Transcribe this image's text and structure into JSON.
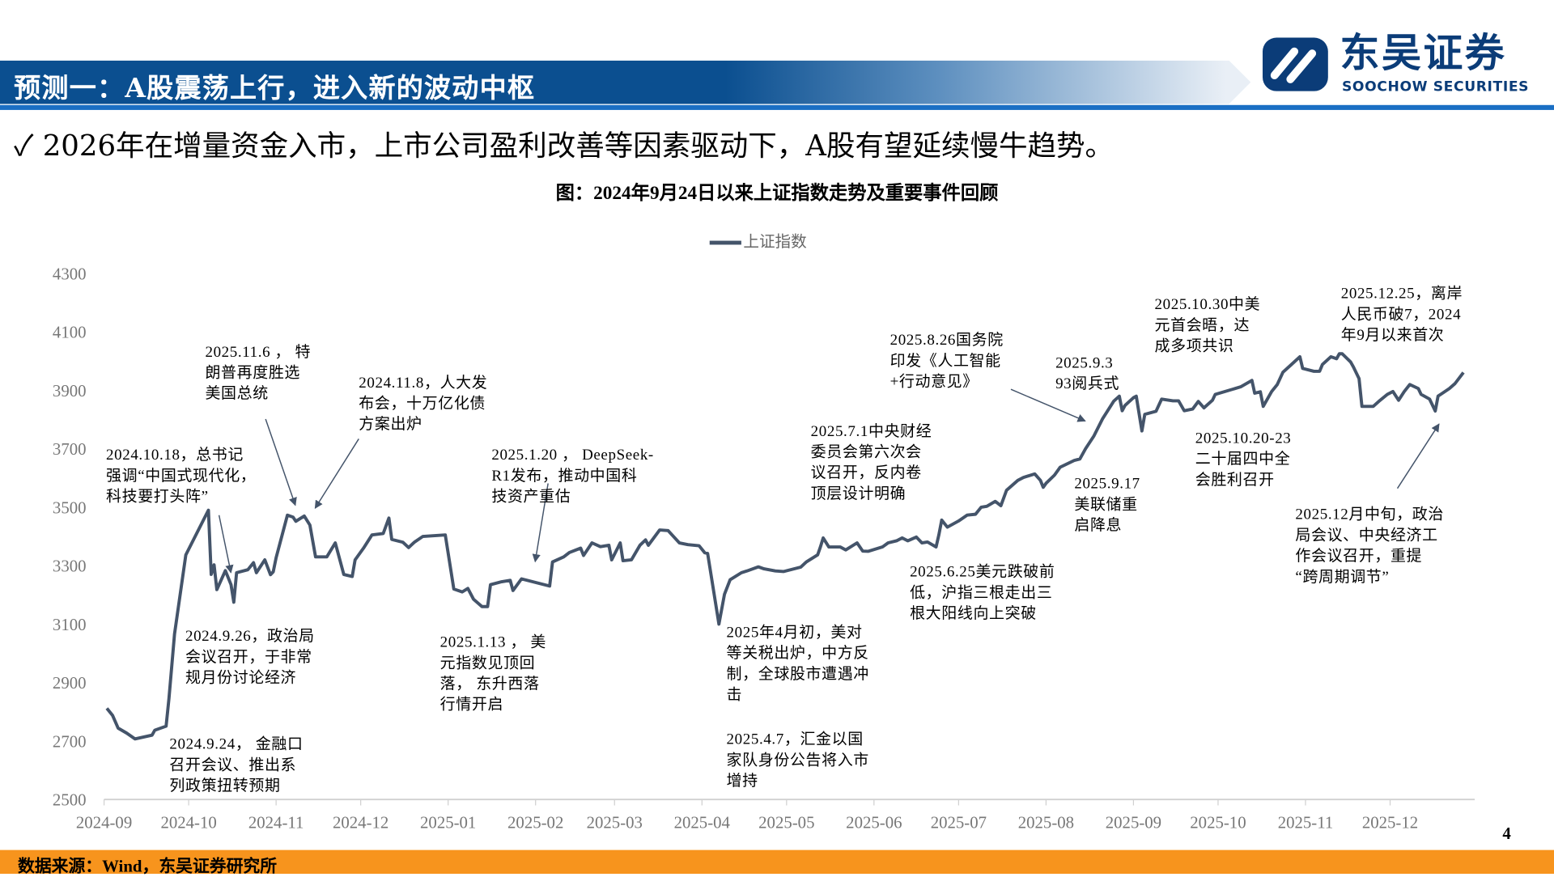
{
  "header": {
    "title": "预测一：A股震荡上行，进入新的波动中枢",
    "logo_cn": "东吴证券",
    "logo_en": "SOOCHOW SECURITIES",
    "brand_color": "#0b4f90"
  },
  "bullet": {
    "icon": "check-icon",
    "text": "2026年在增量资金入市，上市公司盈利改善等因素驱动下，A股有望延续慢牛趋势。"
  },
  "footer": {
    "source": "数据来源：Wind，东吴证券研究所",
    "page": "4",
    "color": "#f7941d"
  },
  "chart_data": {
    "type": "line",
    "title": "图：2024年9月24日以来上证指数走势及重要事件回顾",
    "xlabel": "",
    "ylabel": "",
    "ylim": [
      2500,
      4300
    ],
    "yticks": [
      "2500",
      "2700",
      "2900",
      "3100",
      "3300",
      "3500",
      "3700",
      "3900",
      "4100",
      "4300"
    ],
    "xticks": [
      "2024-09",
      "2024-10",
      "2024-11",
      "2024-12",
      "2025-01",
      "2025-02",
      "2025-03",
      "2025-04",
      "2025-05",
      "2025-06",
      "2025-07",
      "2025-08",
      "2025-09",
      "2025-10",
      "2025-11",
      "2025-12"
    ],
    "legend": "top-center",
    "grid": false,
    "series": [
      {
        "name": "上证指数",
        "color": "#44546a",
        "points": [
          [
            "2024-09-02",
            2812
          ],
          [
            "2024-09-04",
            2788
          ],
          [
            "2024-09-06",
            2744
          ],
          [
            "2024-09-09",
            2727
          ],
          [
            "2024-09-12",
            2707
          ],
          [
            "2024-09-18",
            2720
          ],
          [
            "2024-09-19",
            2737
          ],
          [
            "2024-09-23",
            2751
          ],
          [
            "2024-09-24",
            2846
          ],
          [
            "2024-09-26",
            3066
          ],
          [
            "2024-09-30",
            3337
          ],
          [
            "2024-10-08",
            3490
          ],
          [
            "2024-10-09",
            3270
          ],
          [
            "2024-10-10",
            3303
          ],
          [
            "2024-10-11",
            3218
          ],
          [
            "2024-10-14",
            3283
          ],
          [
            "2024-10-16",
            3235
          ],
          [
            "2024-10-17",
            3175
          ],
          [
            "2024-10-18",
            3276
          ],
          [
            "2024-10-22",
            3286
          ],
          [
            "2024-10-24",
            3310
          ],
          [
            "2024-10-25",
            3276
          ],
          [
            "2024-10-28",
            3320
          ],
          [
            "2024-10-30",
            3269
          ],
          [
            "2024-10-31",
            3279
          ],
          [
            "2024-11-01",
            3327
          ],
          [
            "2024-11-05",
            3473
          ],
          [
            "2024-11-07",
            3466
          ],
          [
            "2024-11-08",
            3452
          ],
          [
            "2024-11-11",
            3470
          ],
          [
            "2024-11-13",
            3439
          ],
          [
            "2024-11-15",
            3330
          ],
          [
            "2024-11-19",
            3330
          ],
          [
            "2024-11-22",
            3378
          ],
          [
            "2024-11-25",
            3270
          ],
          [
            "2024-11-28",
            3263
          ],
          [
            "2024-11-29",
            3320
          ],
          [
            "2024-12-02",
            3360
          ],
          [
            "2024-12-05",
            3405
          ],
          [
            "2024-12-09",
            3410
          ],
          [
            "2024-12-11",
            3463
          ],
          [
            "2024-12-12",
            3390
          ],
          [
            "2024-12-16",
            3380
          ],
          [
            "2024-12-18",
            3362
          ],
          [
            "2024-12-20",
            3380
          ],
          [
            "2024-12-23",
            3400
          ],
          [
            "2024-12-31",
            3405
          ],
          [
            "2025-01-03",
            3220
          ],
          [
            "2025-01-06",
            3210
          ],
          [
            "2025-01-08",
            3222
          ],
          [
            "2025-01-10",
            3185
          ],
          [
            "2025-01-13",
            3160
          ],
          [
            "2025-01-15",
            3160
          ],
          [
            "2025-01-16",
            3235
          ],
          [
            "2025-01-20",
            3245
          ],
          [
            "2025-01-23",
            3250
          ],
          [
            "2025-01-24",
            3215
          ],
          [
            "2025-01-27",
            3255
          ],
          [
            "2025-02-06",
            3230
          ],
          [
            "2025-02-07",
            3313
          ],
          [
            "2025-02-11",
            3330
          ],
          [
            "2025-02-13",
            3345
          ],
          [
            "2025-02-17",
            3360
          ],
          [
            "2025-02-18",
            3335
          ],
          [
            "2025-02-21",
            3378
          ],
          [
            "2025-02-24",
            3365
          ],
          [
            "2025-02-27",
            3370
          ],
          [
            "2025-02-28",
            3320
          ],
          [
            "2025-03-03",
            3378
          ],
          [
            "2025-03-04",
            3317
          ],
          [
            "2025-03-07",
            3320
          ],
          [
            "2025-03-10",
            3370
          ],
          [
            "2025-03-12",
            3388
          ],
          [
            "2025-03-13",
            3370
          ],
          [
            "2025-03-17",
            3422
          ],
          [
            "2025-03-20",
            3420
          ],
          [
            "2025-03-24",
            3378
          ],
          [
            "2025-03-27",
            3372
          ],
          [
            "2025-03-31",
            3368
          ],
          [
            "2025-04-02",
            3344
          ],
          [
            "2025-04-03",
            3342
          ],
          [
            "2025-04-07",
            3100
          ],
          [
            "2025-04-09",
            3202
          ],
          [
            "2025-04-11",
            3252
          ],
          [
            "2025-04-15",
            3276
          ],
          [
            "2025-04-17",
            3282
          ],
          [
            "2025-04-21",
            3296
          ],
          [
            "2025-04-23",
            3289
          ],
          [
            "2025-04-27",
            3282
          ],
          [
            "2025-04-30",
            3280
          ],
          [
            "2025-05-06",
            3295
          ],
          [
            "2025-05-08",
            3313
          ],
          [
            "2025-05-12",
            3337
          ],
          [
            "2025-05-13",
            3364
          ],
          [
            "2025-05-14",
            3395
          ],
          [
            "2025-05-16",
            3364
          ],
          [
            "2025-05-20",
            3364
          ],
          [
            "2025-05-22",
            3354
          ],
          [
            "2025-05-26",
            3378
          ],
          [
            "2025-05-28",
            3350
          ],
          [
            "2025-05-30",
            3349
          ],
          [
            "2025-06-04",
            3364
          ],
          [
            "2025-06-06",
            3378
          ],
          [
            "2025-06-09",
            3385
          ],
          [
            "2025-06-11",
            3395
          ],
          [
            "2025-06-13",
            3385
          ],
          [
            "2025-06-16",
            3398
          ],
          [
            "2025-06-18",
            3378
          ],
          [
            "2025-06-20",
            3381
          ],
          [
            "2025-06-23",
            3364
          ],
          [
            "2025-06-24",
            3405
          ],
          [
            "2025-06-25",
            3456
          ],
          [
            "2025-06-27",
            3432
          ],
          [
            "2025-07-01",
            3453
          ],
          [
            "2025-07-04",
            3473
          ],
          [
            "2025-07-07",
            3476
          ],
          [
            "2025-07-09",
            3500
          ],
          [
            "2025-07-11",
            3503
          ],
          [
            "2025-07-14",
            3520
          ],
          [
            "2025-07-16",
            3505
          ],
          [
            "2025-07-18",
            3558
          ],
          [
            "2025-07-22",
            3592
          ],
          [
            "2025-07-24",
            3602
          ],
          [
            "2025-07-28",
            3614
          ],
          [
            "2025-07-30",
            3592
          ],
          [
            "2025-07-31",
            3568
          ],
          [
            "2025-08-01",
            3582
          ],
          [
            "2025-08-04",
            3610
          ],
          [
            "2025-08-06",
            3637
          ],
          [
            "2025-08-11",
            3660
          ],
          [
            "2025-08-13",
            3665
          ],
          [
            "2025-08-15",
            3700
          ],
          [
            "2025-08-18",
            3744
          ],
          [
            "2025-08-21",
            3802
          ],
          [
            "2025-08-25",
            3863
          ],
          [
            "2025-08-27",
            3880
          ],
          [
            "2025-08-28",
            3830
          ],
          [
            "2025-08-29",
            3848
          ],
          [
            "2025-09-01",
            3875
          ],
          [
            "2025-09-02",
            3880
          ],
          [
            "2025-09-04",
            3761
          ],
          [
            "2025-09-05",
            3818
          ],
          [
            "2025-09-09",
            3828
          ],
          [
            "2025-09-11",
            3870
          ],
          [
            "2025-09-15",
            3864
          ],
          [
            "2025-09-17",
            3864
          ],
          [
            "2025-09-19",
            3830
          ],
          [
            "2025-09-22",
            3836
          ],
          [
            "2025-09-24",
            3862
          ],
          [
            "2025-09-26",
            3840
          ],
          [
            "2025-09-29",
            3866
          ],
          [
            "2025-09-30",
            3886
          ],
          [
            "2025-10-09",
            3912
          ],
          [
            "2025-10-13",
            3934
          ],
          [
            "2025-10-14",
            3890
          ],
          [
            "2025-10-16",
            3895
          ],
          [
            "2025-10-17",
            3845
          ],
          [
            "2025-10-20",
            3896
          ],
          [
            "2025-10-22",
            3920
          ],
          [
            "2025-10-24",
            3962
          ],
          [
            "2025-10-27",
            3988
          ],
          [
            "2025-10-30",
            4015
          ],
          [
            "2025-10-31",
            3975
          ],
          [
            "2025-11-04",
            3965
          ],
          [
            "2025-11-06",
            3965
          ],
          [
            "2025-11-07",
            3988
          ],
          [
            "2025-11-10",
            4015
          ],
          [
            "2025-11-12",
            4008
          ],
          [
            "2025-11-13",
            4025
          ],
          [
            "2025-11-14",
            4025
          ],
          [
            "2025-11-17",
            3997
          ],
          [
            "2025-11-18",
            3980
          ],
          [
            "2025-11-20",
            3940
          ],
          [
            "2025-11-21",
            3845
          ],
          [
            "2025-11-25",
            3845
          ],
          [
            "2025-11-27",
            3862
          ],
          [
            "2025-11-30",
            3886
          ],
          [
            "2025-12-02",
            3896
          ],
          [
            "2025-12-04",
            3866
          ],
          [
            "2025-12-06",
            3896
          ],
          [
            "2025-12-08",
            3920
          ],
          [
            "2025-12-11",
            3906
          ],
          [
            "2025-12-12",
            3886
          ],
          [
            "2025-12-15",
            3870
          ],
          [
            "2025-12-17",
            3829
          ],
          [
            "2025-12-18",
            3880
          ],
          [
            "2025-12-22",
            3906
          ],
          [
            "2025-12-24",
            3923
          ],
          [
            "2025-12-27",
            3961
          ]
        ]
      }
    ],
    "annotations": [
      {
        "id": "a0926",
        "text": "2024.9.26，政治局\n会议召开，于非常\n规月份讨论经济"
      },
      {
        "id": "a0924",
        "text": "2024.9.24， 金融口\n召开会议、推出系\n列政策扭转预期"
      },
      {
        "id": "a1018",
        "text": "2024.10.18，总书记\n强调“中国式现代化，\n科技要打头阵”"
      },
      {
        "id": "a1106",
        "text": "2025.11.6 ， 特\n朗普再度胜选\n美国总统"
      },
      {
        "id": "a1108",
        "text": "2024.11.8，人大发\n布会，十万亿化债\n方案出炉"
      },
      {
        "id": "a0113",
        "text": "2025.1.13 ， 美\n元指数见顶回\n落， 东升西落\n行情开启"
      },
      {
        "id": "a0120",
        "text": "2025.1.20 ， DeepSeek-\nR1发布，推动中国科\n技资产重估"
      },
      {
        "id": "a0404",
        "text": "2025年4月初，美对\n等关税出炉，中方反\n制，全球股市遭遇冲\n击"
      },
      {
        "id": "a0407",
        "text": "2025.4.7，汇金以国\n家队身份公告将入市\n增持"
      },
      {
        "id": "a0701",
        "text": "2025.7.1中央财经\n委员会第六次会\n议召开，反内卷\n顶层设计明确"
      },
      {
        "id": "a0625",
        "text": "2025.6.25美元跌破前\n低，沪指三根走出三\n根大阳线向上突破"
      },
      {
        "id": "a0826",
        "text": "2025.8.26国务院\n印发《人工智能\n+行动意见》"
      },
      {
        "id": "a0903",
        "text": "2025.9.3\n93阅兵式"
      },
      {
        "id": "a0917",
        "text": "2025.9.17\n美联储重\n启降息"
      },
      {
        "id": "a1030",
        "text": "2025.10.30中美\n元首会晤，达\n成多项共识"
      },
      {
        "id": "a1020",
        "text": "2025.10.20-23\n二十届四中全\n会胜利召开"
      },
      {
        "id": "a1225",
        "text": "2025.12.25，离岸\n人民币破7，2024\n年9月以来首次"
      },
      {
        "id": "a1200",
        "text": "2025.12月中旬，政治\n局会议、中央经济工\n作会议召开，重提\n“跨周期调节”"
      }
    ]
  }
}
